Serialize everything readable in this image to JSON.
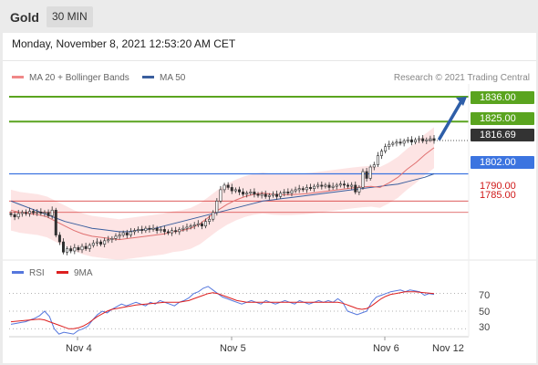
{
  "header": {
    "instrument": "Gold",
    "timeframe": "30 MIN",
    "datetime": "Monday, November 8, 2021 12:53:20 AM CET"
  },
  "legend": {
    "ma20": "MA 20 + Bollinger Bands",
    "ma50": "MA 50",
    "rsi": "RSI",
    "ma9": "9MA",
    "copyright": "Research © 2021 Trading Central"
  },
  "colors": {
    "resistance": "#5aa41f",
    "pivot": "#3c74e0",
    "support": "#d01818",
    "current": "#333333",
    "ma20": "#e07070",
    "ma50": "#3a5e9e",
    "rsi": "#5577dd",
    "rsi_ma": "#dd2020",
    "bollinger_fill": "#fde1e1",
    "candle": "#2e2e2e"
  },
  "chart_data": [
    {
      "type": "candlestick",
      "title": "",
      "xlabel": "",
      "ylabel": "",
      "x_ticks": [
        "Nov 4",
        "Nov 5",
        "Nov 6",
        "Nov 12"
      ],
      "ylim": [
        1766,
        1840
      ],
      "levels": [
        {
          "value": 1836.0,
          "label": "1836.00",
          "kind": "resistance"
        },
        {
          "value": 1825.0,
          "label": "1825.00",
          "kind": "resistance"
        },
        {
          "value": 1816.69,
          "label": "1816.69",
          "kind": "current"
        },
        {
          "value": 1802.0,
          "label": "1802.00",
          "kind": "pivot"
        },
        {
          "value": 1790.0,
          "label": "1790.00",
          "kind": "support"
        },
        {
          "value": 1785.0,
          "label": "1785.00",
          "kind": "support"
        }
      ],
      "target_arrow": {
        "from": 1816.69,
        "to": 1836.0
      },
      "close": [
        1784.0,
        1783.0,
        1784.5,
        1785.0,
        1784.5,
        1785.5,
        1784.8,
        1785.2,
        1784.6,
        1785.0,
        1783.5,
        1786.0,
        1775.0,
        1772.0,
        1767.5,
        1769.0,
        1768.0,
        1769.5,
        1768.5,
        1770.0,
        1769.0,
        1770.5,
        1771.5,
        1772.0,
        1771.0,
        1772.5,
        1773.0,
        1773.5,
        1774.5,
        1775.0,
        1776.0,
        1775.0,
        1776.5,
        1777.0,
        1777.5,
        1777.0,
        1778.0,
        1777.5,
        1778.0,
        1777.0,
        1777.5,
        1776.5,
        1776.0,
        1777.0,
        1776.5,
        1777.5,
        1778.0,
        1778.5,
        1779.0,
        1779.5,
        1780.0,
        1779.0,
        1781.0,
        1782.0,
        1785.0,
        1790.0,
        1795.0,
        1797.0,
        1796.0,
        1794.5,
        1795.0,
        1794.0,
        1793.0,
        1793.5,
        1794.0,
        1793.0,
        1792.5,
        1793.0,
        1792.0,
        1792.5,
        1793.0,
        1792.0,
        1793.5,
        1794.0,
        1793.5,
        1794.5,
        1795.0,
        1795.5,
        1795.0,
        1796.0,
        1795.5,
        1796.5,
        1797.0,
        1796.5,
        1797.0,
        1796.0,
        1796.5,
        1797.0,
        1797.5,
        1797.0,
        1796.5,
        1797.0,
        1794.0,
        1796.0,
        1803.0,
        1800.0,
        1805.0,
        1806.0,
        1810.0,
        1812.0,
        1814.0,
        1815.0,
        1815.5,
        1816.0,
        1815.5,
        1816.5,
        1817.0,
        1816.0,
        1817.0,
        1817.5,
        1816.5,
        1817.0,
        1817.5,
        1816.69
      ],
      "ma20": [
        1786.0,
        1785.0,
        1784.5,
        1784.0,
        1783.0,
        1781.0,
        1779.0,
        1777.0,
        1775.5,
        1774.5,
        1774.0,
        1773.5,
        1773.0,
        1773.5,
        1774.0,
        1774.5,
        1775.0,
        1775.5,
        1776.5,
        1777.0,
        1778.0,
        1780.0,
        1783.0,
        1786.0,
        1788.5,
        1790.5,
        1792.0,
        1793.0,
        1793.5,
        1793.0,
        1792.8,
        1792.8,
        1793.0,
        1793.3,
        1793.8,
        1794.3,
        1794.8,
        1795.3,
        1795.8,
        1796.2,
        1796.5,
        1796.0,
        1798.0,
        1800.5,
        1804.0,
        1807.0,
        1810.5,
        1813.5
      ],
      "ma50": [
        1790.0,
        1788.5,
        1787.0,
        1785.5,
        1784.0,
        1782.5,
        1781.0,
        1780.0,
        1779.0,
        1778.0,
        1777.5,
        1777.0,
        1776.5,
        1776.5,
        1777.0,
        1777.5,
        1778.0,
        1779.0,
        1780.0,
        1781.0,
        1782.0,
        1783.0,
        1784.0,
        1785.0,
        1786.0,
        1787.0,
        1788.0,
        1789.0,
        1790.0,
        1790.5,
        1791.0,
        1791.5,
        1792.0,
        1792.5,
        1793.0,
        1793.5,
        1794.0,
        1794.5,
        1795.0,
        1795.5,
        1796.0,
        1796.5,
        1797.0,
        1797.5,
        1798.5,
        1799.5,
        1800.5,
        1802.0
      ]
    },
    {
      "type": "line",
      "title": "",
      "series_names": [
        "RSI",
        "9MA"
      ],
      "ylim": [
        22,
        80
      ],
      "y_ticks": [
        70,
        50,
        30
      ],
      "rsi": [
        35,
        36,
        37,
        38,
        40,
        42,
        45,
        50,
        44,
        30,
        24,
        26,
        25,
        24,
        28,
        30,
        33,
        40,
        46,
        50,
        48,
        52,
        55,
        58,
        56,
        58,
        60,
        58,
        56,
        60,
        58,
        62,
        60,
        58,
        56,
        60,
        62,
        65,
        70,
        72,
        76,
        78,
        74,
        70,
        66,
        64,
        62,
        60,
        58,
        60,
        62,
        60,
        58,
        62,
        60,
        58,
        60,
        62,
        60,
        58,
        62,
        60,
        58,
        60,
        62,
        60,
        62,
        60,
        64,
        60,
        50,
        48,
        46,
        48,
        50,
        60,
        66,
        68,
        70,
        72,
        73,
        74,
        72,
        74,
        73,
        72,
        68,
        70,
        69
      ],
      "ma9": [
        38,
        38.5,
        39,
        39.5,
        40,
        40.5,
        41,
        40,
        38,
        36,
        34,
        32,
        30,
        30,
        31,
        33,
        36,
        40,
        44,
        47,
        50,
        52,
        53,
        54,
        55,
        56,
        57,
        57.5,
        58,
        58.5,
        59,
        59.5,
        60,
        60,
        60,
        60,
        61,
        62,
        64,
        66,
        68,
        70,
        71,
        70,
        68,
        66,
        64,
        62,
        61,
        60,
        60,
        60,
        60,
        60,
        60,
        60,
        60,
        60,
        60,
        60,
        60,
        60,
        60,
        60,
        60,
        60,
        60,
        60,
        60,
        59,
        57,
        55,
        53,
        52,
        53,
        56,
        60,
        64,
        67,
        69,
        70,
        71,
        72,
        72,
        72,
        71.5,
        71,
        70.5,
        70
      ]
    }
  ]
}
